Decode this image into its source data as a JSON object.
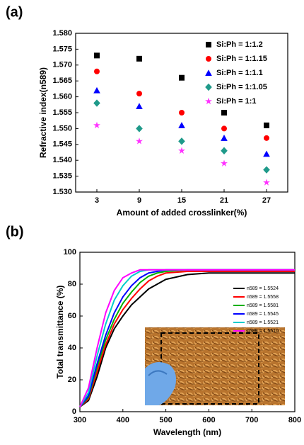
{
  "chart_data": [
    {
      "type": "scatter",
      "panel_label": "(a)",
      "x_label": "Amount of added crosslinker(%)",
      "y_label": "Refractive index(n589)",
      "categories": [
        3,
        9,
        15,
        21,
        27
      ],
      "ylim": [
        1.53,
        1.58
      ],
      "yticks": [
        {
          "value": 1.53,
          "label": "1.530"
        },
        {
          "value": 1.535,
          "label": "1.535"
        },
        {
          "value": 1.54,
          "label": "1.540"
        },
        {
          "value": 1.545,
          "label": "1.545"
        },
        {
          "value": 1.55,
          "label": "1.550"
        },
        {
          "value": 1.555,
          "label": "1.555"
        },
        {
          "value": 1.56,
          "label": "1.560"
        },
        {
          "value": 1.565,
          "label": "1.565"
        },
        {
          "value": 1.57,
          "label": "1.570"
        },
        {
          "value": 1.575,
          "label": "1.575"
        },
        {
          "value": 1.58,
          "label": "1.580"
        }
      ],
      "legend": "upper right",
      "series": [
        {
          "name": "Si:Ph = 1:1.2",
          "color": "#000000",
          "marker": "square",
          "values": [
            1.573,
            1.572,
            1.566,
            1.555,
            1.551
          ]
        },
        {
          "name": "Si:Ph = 1:1.15",
          "color": "#ff0000",
          "marker": "circle",
          "values": [
            1.568,
            1.561,
            1.555,
            1.55,
            1.547
          ]
        },
        {
          "name": "Si:Ph = 1:1.1",
          "color": "#0000ff",
          "marker": "triangle",
          "values": [
            1.562,
            1.557,
            1.551,
            1.547,
            1.542
          ]
        },
        {
          "name": "Si:Ph = 1:1.05",
          "color": "#1f9a8a",
          "marker": "diamond",
          "values": [
            1.558,
            1.55,
            1.546,
            1.543,
            1.537
          ]
        },
        {
          "name": "Si:Ph = 1:1",
          "color": "#ff33ff",
          "marker": "star",
          "values": [
            1.551,
            1.546,
            1.543,
            1.539,
            1.533
          ]
        }
      ]
    },
    {
      "type": "line",
      "panel_label": "(b)",
      "x_label": "Wavelength (nm)",
      "y_label": "Total transmittance (%)",
      "x": [
        300,
        320,
        340,
        360,
        380,
        400,
        420,
        440,
        460,
        480,
        500,
        550,
        600,
        650,
        700,
        750,
        800
      ],
      "xlim": [
        300,
        800
      ],
      "xticks": [
        300,
        400,
        500,
        600,
        700,
        800
      ],
      "ylim": [
        0,
        100
      ],
      "yticks": [
        0,
        20,
        40,
        60,
        80,
        100
      ],
      "legend": "center right",
      "series": [
        {
          "name": "n589 = 1.5524",
          "color": "#000000",
          "values": [
            3,
            7,
            22,
            40,
            52,
            60,
            67,
            72,
            77,
            80,
            83,
            86,
            87,
            87,
            87,
            87,
            87
          ]
        },
        {
          "name": "n589 = 1.5558",
          "color": "#ff0000",
          "values": [
            3,
            8,
            25,
            42,
            55,
            64,
            71,
            77,
            82,
            85,
            87,
            88,
            88,
            88,
            88,
            88,
            88
          ]
        },
        {
          "name": "n589 = 1.5581",
          "color": "#00b000",
          "values": [
            3,
            9,
            28,
            45,
            58,
            68,
            75,
            81,
            85,
            87,
            88,
            89,
            89,
            89,
            89,
            89,
            89
          ]
        },
        {
          "name": "n589 = 1.5545",
          "color": "#0000ff",
          "values": [
            3,
            10,
            30,
            48,
            62,
            72,
            79,
            84,
            87,
            88,
            89,
            89,
            89,
            89,
            89,
            89,
            89
          ]
        },
        {
          "name": "n589 = 1.5521",
          "color": "#00cccc",
          "values": [
            3,
            12,
            35,
            55,
            70,
            79,
            85,
            88,
            89,
            89,
            89,
            89,
            89,
            89,
            89,
            89,
            89
          ]
        },
        {
          "name": "n589 = 1.5510",
          "color": "#ff00ff",
          "values": [
            3,
            15,
            40,
            62,
            76,
            84,
            87,
            89,
            89,
            89,
            89,
            89,
            89,
            89,
            89,
            89,
            89
          ]
        }
      ]
    }
  ]
}
